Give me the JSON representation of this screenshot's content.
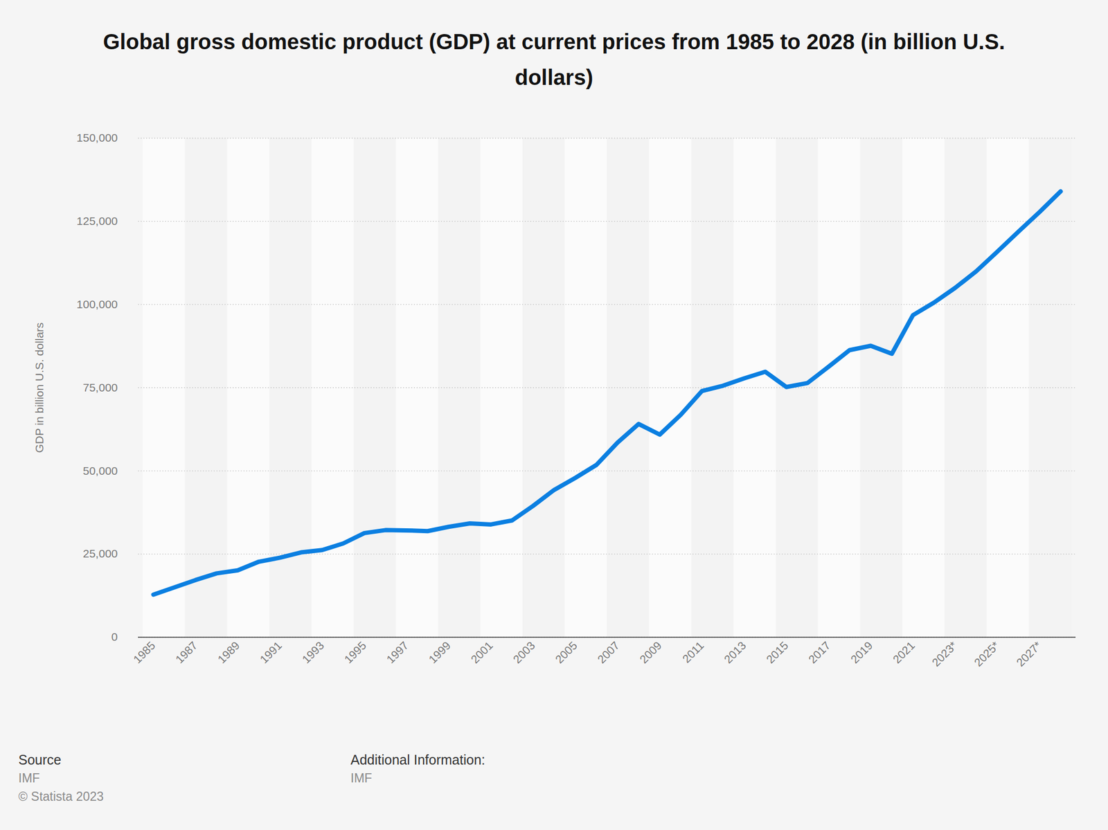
{
  "chart_data": {
    "type": "line",
    "title": "Global gross domestic product (GDP) at current prices from 1985 to 2028 (in billion U.S. dollars)",
    "y_label": "GDP in billion U.S. dollars",
    "categories": [
      "1985",
      null,
      "1987",
      null,
      "1989",
      null,
      "1991",
      null,
      "1993",
      null,
      "1995",
      null,
      "1997",
      null,
      "1999",
      null,
      "2001",
      null,
      "2003",
      null,
      "2005",
      null,
      "2007",
      null,
      "2009",
      null,
      "2011",
      null,
      "2013",
      null,
      "2015",
      null,
      "2017",
      null,
      "2019",
      null,
      "2021",
      null,
      "2023*",
      null,
      "2025*",
      null,
      "2027*",
      null
    ],
    "values": [
      12800,
      15000,
      17200,
      19200,
      20100,
      22700,
      23900,
      25500,
      26200,
      28200,
      31300,
      32200,
      32100,
      31900,
      33200,
      34200,
      33900,
      35100,
      39500,
      44300,
      47900,
      51800,
      58500,
      64100,
      60900,
      66900,
      74000,
      75600,
      77800,
      79800,
      75200,
      76400,
      81300,
      86300,
      87600,
      85200,
      96800,
      100600,
      105000,
      110000,
      115900,
      121900,
      127800,
      134000
    ],
    "color": "#0b7fe1",
    "ylim": [
      0,
      150000
    ],
    "yticks": [
      0,
      {
        "value": 25000,
        "label": "25,000"
      },
      {
        "value": 50000,
        "label": "50,000"
      },
      {
        "value": 75000,
        "label": "75,000"
      },
      {
        "value": 100000,
        "label": "100,000"
      },
      {
        "value": 125000,
        "label": "125,000"
      },
      {
        "value": 150000,
        "label": "150,000"
      }
    ],
    "grid": true,
    "source_label": "Source",
    "source": "IMF",
    "copyright": "© Statista 2023",
    "info_label": "Additional Information:",
    "info": "IMF"
  }
}
